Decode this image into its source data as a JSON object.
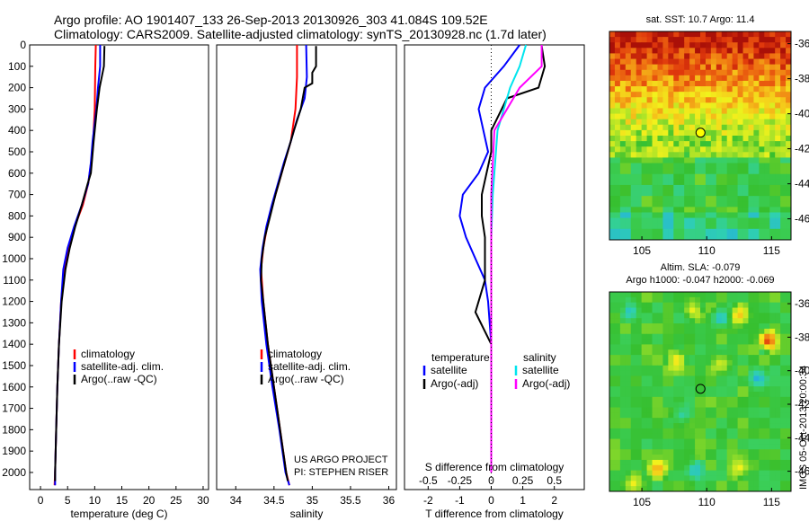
{
  "header": {
    "line1": "Argo profile: AO 1901407_133 26-Sep-2013 20130926_303 41.084S 109.52E",
    "line2": "Climatology: CARS2009. Satellite-adjusted climatology: synTS_20130928.nc (1.7d later)"
  },
  "credit": {
    "line1": "US ARGO PROJECT",
    "line2": "PI: STEPHEN RISER"
  },
  "side_stamp": "IMOS 05-Oct-2013 20:00:34",
  "colors": {
    "climatology": "#ff0000",
    "satellite": "#0000ff",
    "argo": "#000000",
    "s_satellite": "#00e5ee",
    "s_argo": "#ff00ff"
  },
  "chart_data": [
    {
      "type": "line",
      "id": "temperature",
      "xlabel": "temperature (deg C)",
      "ylabel": "",
      "xlim": [
        -2,
        31
      ],
      "ylim": [
        2080,
        0
      ],
      "xticks": [
        0,
        5,
        10,
        15,
        20,
        25,
        30
      ],
      "yticks": [
        0,
        100,
        200,
        300,
        400,
        500,
        600,
        700,
        800,
        900,
        1000,
        1100,
        1200,
        1300,
        1400,
        1500,
        1600,
        1700,
        1800,
        1900,
        2000
      ],
      "legend": {
        "placement": "lower-right",
        "entries": [
          "climatology",
          "satellite-adj. clim.",
          "Argo(..raw -QC)"
        ]
      },
      "series": [
        {
          "name": "climatology",
          "color": "#ff0000",
          "points": [
            [
              10.2,
              0
            ],
            [
              10.1,
              100
            ],
            [
              10.0,
              300
            ],
            [
              9.6,
              500
            ],
            [
              8.8,
              650
            ],
            [
              7.8,
              750
            ],
            [
              6.3,
              850
            ],
            [
              5.2,
              950
            ],
            [
              4.4,
              1050
            ],
            [
              3.8,
              1200
            ],
            [
              3.4,
              1400
            ],
            [
              3.1,
              1600
            ],
            [
              2.9,
              1800
            ],
            [
              2.7,
              2000
            ],
            [
              2.6,
              2060
            ]
          ]
        },
        {
          "name": "satellite-adj. clim.",
          "color": "#0000ff",
          "points": [
            [
              11.0,
              0
            ],
            [
              11.0,
              100
            ],
            [
              10.6,
              200
            ],
            [
              10.3,
              300
            ],
            [
              9.6,
              450
            ],
            [
              9.3,
              550
            ],
            [
              8.8,
              650
            ],
            [
              7.6,
              750
            ],
            [
              6.2,
              850
            ],
            [
              5.0,
              950
            ],
            [
              4.2,
              1050
            ],
            [
              3.8,
              1200
            ],
            [
              3.4,
              1400
            ],
            [
              3.1,
              1600
            ],
            [
              2.9,
              1800
            ],
            [
              2.7,
              2000
            ],
            [
              2.7,
              2060
            ]
          ]
        },
        {
          "name": "Argo(..raw -QC)",
          "color": "#000000",
          "points": [
            [
              11.8,
              5
            ],
            [
              11.7,
              100
            ],
            [
              10.9,
              200
            ],
            [
              10.4,
              300
            ],
            [
              9.8,
              450
            ],
            [
              9.3,
              600
            ],
            [
              8.7,
              650
            ],
            [
              7.6,
              750
            ],
            [
              6.4,
              850
            ],
            [
              5.4,
              950
            ],
            [
              4.6,
              1050
            ],
            [
              3.9,
              1200
            ],
            [
              3.4,
              1400
            ],
            [
              3.1,
              1600
            ],
            [
              2.9,
              1800
            ],
            [
              2.7,
              2000
            ],
            [
              2.7,
              2040
            ]
          ]
        }
      ]
    },
    {
      "type": "line",
      "id": "salinity",
      "xlabel": "salinity",
      "ylabel": "",
      "xlim": [
        33.75,
        36.1
      ],
      "ylim": [
        2080,
        0
      ],
      "xticks": [
        34,
        34.5,
        35,
        35.5,
        36
      ],
      "legend": {
        "placement": "lower-right",
        "entries": [
          "climatology",
          "satellite-adj. clim.",
          "Argo(..raw -QC)"
        ]
      },
      "series": [
        {
          "name": "climatology",
          "color": "#ff0000",
          "points": [
            [
              34.8,
              0
            ],
            [
              34.8,
              150
            ],
            [
              34.78,
              300
            ],
            [
              34.72,
              450
            ],
            [
              34.64,
              550
            ],
            [
              34.56,
              650
            ],
            [
              34.48,
              750
            ],
            [
              34.41,
              850
            ],
            [
              34.36,
              950
            ],
            [
              34.33,
              1050
            ],
            [
              34.36,
              1200
            ],
            [
              34.42,
              1400
            ],
            [
              34.5,
              1600
            ],
            [
              34.58,
              1800
            ],
            [
              34.66,
              2000
            ],
            [
              34.7,
              2060
            ]
          ]
        },
        {
          "name": "satellite-adj. clim.",
          "color": "#0000ff",
          "points": [
            [
              34.92,
              0
            ],
            [
              34.93,
              150
            ],
            [
              34.9,
              250
            ],
            [
              34.8,
              350
            ],
            [
              34.72,
              450
            ],
            [
              34.63,
              550
            ],
            [
              34.55,
              650
            ],
            [
              34.47,
              750
            ],
            [
              34.4,
              850
            ],
            [
              34.35,
              950
            ],
            [
              34.32,
              1050
            ],
            [
              34.34,
              1200
            ],
            [
              34.4,
              1400
            ],
            [
              34.48,
              1600
            ],
            [
              34.57,
              1800
            ],
            [
              34.65,
              2000
            ],
            [
              34.7,
              2060
            ]
          ]
        },
        {
          "name": "Argo(..raw -QC)",
          "color": "#000000",
          "points": [
            [
              35.05,
              5
            ],
            [
              35.05,
              100
            ],
            [
              35.0,
              130
            ],
            [
              35.0,
              180
            ],
            [
              34.9,
              200
            ],
            [
              34.85,
              300
            ],
            [
              34.76,
              400
            ],
            [
              34.68,
              500
            ],
            [
              34.6,
              600
            ],
            [
              34.52,
              700
            ],
            [
              34.45,
              800
            ],
            [
              34.38,
              900
            ],
            [
              34.34,
              1000
            ],
            [
              34.33,
              1100
            ],
            [
              34.36,
              1200
            ],
            [
              34.42,
              1400
            ],
            [
              34.5,
              1600
            ],
            [
              34.58,
              1800
            ],
            [
              34.66,
              2000
            ],
            [
              34.68,
              2040
            ]
          ]
        }
      ]
    },
    {
      "type": "line",
      "id": "difference",
      "xlabel": "T difference from climatology",
      "ylabel": "",
      "top_label": "S difference from climatology",
      "xlim": [
        -2.75,
        2.95
      ],
      "ylim": [
        2080,
        0
      ],
      "xticks": [
        -2,
        -1,
        0,
        1,
        2
      ],
      "top_ticks": [
        "-0.5",
        "-0.25",
        "0",
        "0.25",
        "0.5"
      ],
      "top_tick_positions_T": [
        -2,
        -1,
        0,
        1,
        2
      ],
      "legend": {
        "placement": "lower-left",
        "temperature_heading": "temperature",
        "salinity_heading": "salinity",
        "entries": [
          "satellite",
          "Argo(-adj)",
          "satellite",
          "Argo(-adj)"
        ]
      },
      "series": [
        {
          "name": "T satellite",
          "color": "#0000ff",
          "points": [
            [
              0.9,
              0
            ],
            [
              0.4,
              100
            ],
            [
              -0.2,
              200
            ],
            [
              -0.4,
              300
            ],
            [
              -0.1,
              500
            ],
            [
              -0.4,
              600
            ],
            [
              -0.9,
              700
            ],
            [
              -1.0,
              800
            ],
            [
              -0.8,
              900
            ],
            [
              -0.5,
              1000
            ],
            [
              -0.2,
              1100
            ],
            [
              -0.1,
              1200
            ],
            [
              0,
              1400
            ],
            [
              0,
              1600
            ],
            [
              0,
              1800
            ],
            [
              0,
              2000
            ]
          ]
        },
        {
          "name": "T Argo(-adj)",
          "color": "#000000",
          "points": [
            [
              1.6,
              5
            ],
            [
              1.7,
              100
            ],
            [
              1.5,
              200
            ],
            [
              0.5,
              250
            ],
            [
              0,
              400
            ],
            [
              0,
              500
            ],
            [
              -0.3,
              700
            ],
            [
              -0.3,
              800
            ],
            [
              -0.2,
              900
            ],
            [
              -0.2,
              1100
            ],
            [
              -0.5,
              1250
            ],
            [
              0,
              1400
            ],
            [
              0,
              2000
            ]
          ]
        },
        {
          "name": "S satellite",
          "color": "#00e5ee",
          "points": [
            [
              1.1,
              0
            ],
            [
              0.9,
              100
            ],
            [
              0.6,
              200
            ],
            [
              0.2,
              400
            ],
            [
              0.05,
              700
            ],
            [
              0,
              900
            ],
            [
              0,
              2000
            ]
          ]
        },
        {
          "name": "S Argo(-adj)",
          "color": "#ff00ff",
          "points": [
            [
              1.6,
              0
            ],
            [
              1.6,
              100
            ],
            [
              0.9,
              200
            ],
            [
              0.1,
              400
            ],
            [
              0,
              700
            ],
            [
              0,
              2000
            ]
          ]
        }
      ]
    },
    {
      "type": "heatmap",
      "id": "sst-map",
      "title": "sat. SST: 10.7 Argo: 11.4",
      "xlim": [
        102.5,
        116.5
      ],
      "ylim": [
        -47.2,
        -35.3
      ],
      "xticks": [
        105,
        110,
        115
      ],
      "yticks": [
        -36,
        -38,
        -40,
        -42,
        -44,
        -46
      ],
      "marker": {
        "lon": 109.52,
        "lat": -41.08,
        "fill": "#ffff00"
      }
    },
    {
      "type": "heatmap",
      "id": "sla-map",
      "title": "Altim. SLA: -0.079",
      "subtitle": "Argo h1000: -0.047 h2000: -0.069",
      "xlim": [
        102.5,
        116.5
      ],
      "ylim": [
        -47.2,
        -35.3
      ],
      "xticks": [
        105,
        110,
        115
      ],
      "yticks": [
        -36,
        -38,
        -40,
        -42,
        -44,
        -46
      ],
      "marker": {
        "lon": 109.52,
        "lat": -41.08,
        "fill": "none"
      }
    }
  ]
}
